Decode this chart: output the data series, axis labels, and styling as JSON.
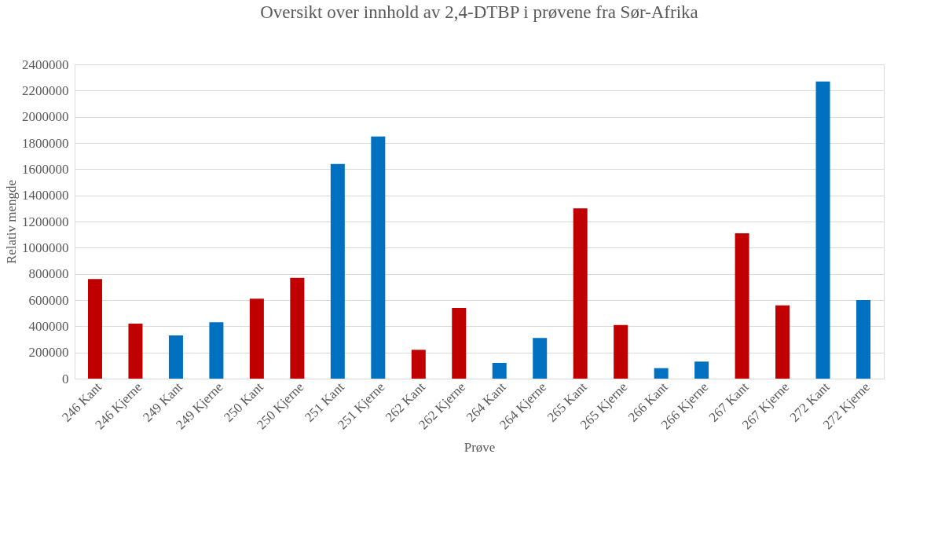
{
  "chart_data": {
    "type": "bar",
    "title": "Oversikt over innhold av 2,4-DTBP i prøvene fra Sør-Afrika",
    "xlabel": "Prøve",
    "ylabel": "Relativ mengde",
    "categories": [
      "246 Kant",
      "246 Kjerne",
      "249 Kant",
      "249 Kjerne",
      "250 Kant",
      "250 Kjerne",
      "251 Kant",
      "251 Kjerne",
      "262 Kant",
      "262 Kjerne",
      "264 Kant",
      "264 Kjerne",
      "265 Kant",
      "265 Kjerne",
      "266 Kant",
      "266 Kjerne",
      "267 Kant",
      "267 Kjerne",
      "272 Kant",
      "272 Kjerne"
    ],
    "values": [
      760000,
      420000,
      330000,
      430000,
      610000,
      770000,
      1640000,
      1850000,
      220000,
      540000,
      120000,
      310000,
      1300000,
      410000,
      80000,
      130000,
      1110000,
      560000,
      2270000,
      600000
    ],
    "colors": [
      "#c00000",
      "#c00000",
      "#0070c0",
      "#0070c0",
      "#c00000",
      "#c00000",
      "#0070c0",
      "#0070c0",
      "#c00000",
      "#c00000",
      "#0070c0",
      "#0070c0",
      "#c00000",
      "#c00000",
      "#0070c0",
      "#0070c0",
      "#c00000",
      "#c00000",
      "#0070c0",
      "#0070c0"
    ],
    "ylim": [
      0,
      2400000
    ],
    "yticks": [
      0,
      200000,
      400000,
      600000,
      800000,
      1000000,
      1200000,
      1400000,
      1600000,
      1800000,
      2000000,
      2200000,
      2400000
    ],
    "grid": "y"
  }
}
